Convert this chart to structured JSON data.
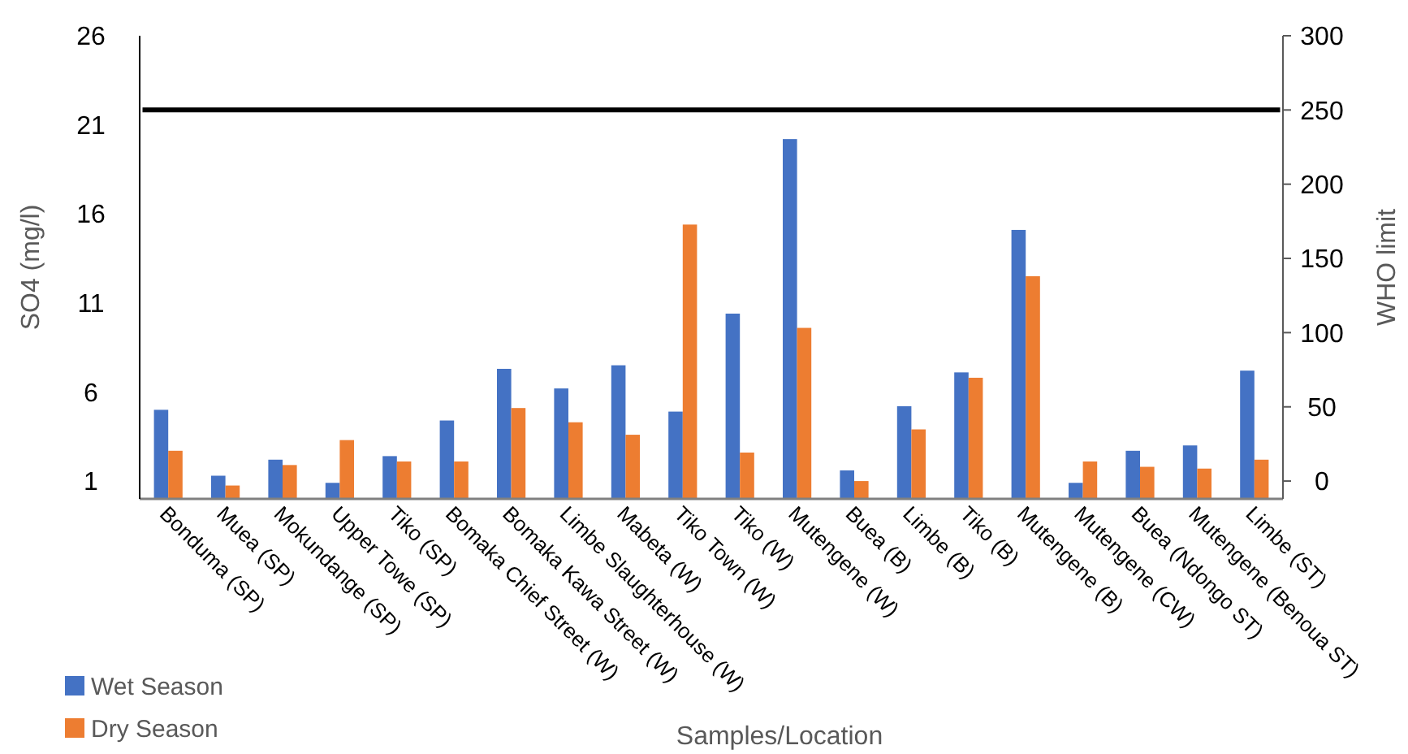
{
  "chart_data": {
    "type": "bar",
    "xlabel": "Samples/Location",
    "ylabel": "SO4 (mg/l)",
    "y2label": "WHO limit",
    "categories": [
      "Bonduma (SP)",
      "Muea (SP)",
      "Mokundange (SP)",
      "Upper Towe (SP)",
      "Tiko (SP)",
      "Bomaka Chief Street (W)",
      "Bomaka Kawa Street (W)",
      "Limbe Slaughterhouse (W)",
      "Mabeta (W)",
      "Tiko Town (W)",
      "Tiko (W)",
      "Mutengene (W)",
      "Buea (B)",
      "Limbe (B)",
      "Tiko (B)",
      "Mutengene (B)",
      "Mutengene (CW)",
      "Buea (Ndongo ST)",
      "Mutengene (Benoua ST)",
      "Limbe (ST)"
    ],
    "series": [
      {
        "name": "Wet Season",
        "color": "#4472c4",
        "values": [
          5.0,
          1.3,
          2.2,
          0.9,
          2.4,
          4.4,
          7.3,
          6.2,
          7.5,
          4.9,
          10.4,
          20.2,
          1.6,
          5.2,
          7.1,
          15.1,
          0.9,
          2.7,
          3.0,
          7.2
        ]
      },
      {
        "name": "Dry Season",
        "color": "#ed7d31",
        "values": [
          2.7,
          0.75,
          1.9,
          3.3,
          2.1,
          2.1,
          5.1,
          4.3,
          3.6,
          15.4,
          2.6,
          9.6,
          1.0,
          3.9,
          6.8,
          12.5,
          2.1,
          1.8,
          1.7,
          2.2
        ]
      }
    ],
    "ref_lines": [
      {
        "axis": "y2",
        "value": 250,
        "color": "#000000"
      }
    ],
    "ylim": [
      0,
      26
    ],
    "yticks": [
      1,
      6,
      11,
      16,
      21,
      26
    ],
    "y2lim": [
      -12,
      300
    ],
    "y2ticks": [
      0,
      50,
      100,
      150,
      200,
      250,
      300
    ],
    "legend": "bottom left",
    "grid": false
  }
}
